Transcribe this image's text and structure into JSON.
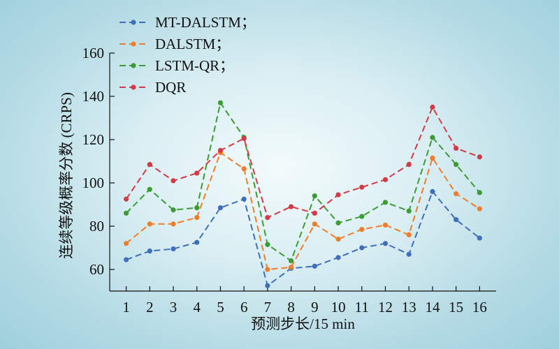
{
  "chart_data": {
    "type": "line",
    "title": "",
    "xlabel": "预测步长/15 min",
    "ylabel": "连续等级概率分数 (CRPS)",
    "x": [
      1,
      2,
      3,
      4,
      5,
      6,
      7,
      8,
      9,
      10,
      11,
      12,
      13,
      14,
      15,
      16
    ],
    "xlim": [
      0.3,
      16.7
    ],
    "ylim": [
      50,
      160
    ],
    "yticks": [
      60,
      80,
      100,
      120,
      140,
      160
    ],
    "grid": false,
    "legend_position": "top-left",
    "line_style": "dashed",
    "series": [
      {
        "name": "MT-DALSTM；",
        "color": "#3f6fba",
        "values": [
          64.5,
          68.5,
          69.5,
          72.5,
          88.5,
          92.5,
          52.5,
          60.5,
          61.5,
          65.5,
          70,
          72,
          67,
          96,
          83,
          74.5
        ]
      },
      {
        "name": "DALSTM；",
        "color": "#f07d2a",
        "values": [
          72,
          81,
          81,
          84,
          114,
          106.5,
          60,
          61,
          81,
          74,
          78.5,
          80.5,
          76,
          111.5,
          95,
          88
        ]
      },
      {
        "name": "LSTM-QR；",
        "color": "#3a9c33",
        "values": [
          86,
          97,
          87.5,
          88.5,
          137,
          121,
          71.5,
          64,
          94,
          81.5,
          84.5,
          91,
          87,
          121,
          108.5,
          95.5
        ]
      },
      {
        "name": "DQR",
        "color": "#d23a46",
        "values": [
          92.5,
          108.5,
          101,
          104.5,
          115,
          120.5,
          84,
          89,
          86,
          94.5,
          98,
          101.5,
          108.5,
          135,
          116,
          112
        ]
      }
    ]
  }
}
